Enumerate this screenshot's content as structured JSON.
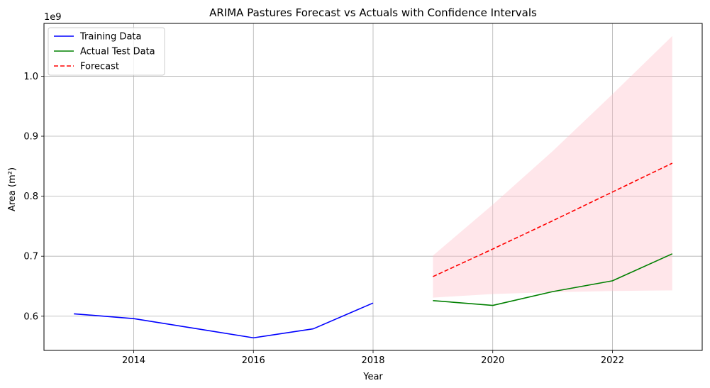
{
  "chart_data": {
    "type": "line",
    "title": "ARIMA Pastures Forecast vs Actuals with Confidence Intervals",
    "xlabel": "Year",
    "ylabel": "Area (m²)",
    "y_offset_label": "1e9",
    "xlim": [
      2012.5,
      2023.5
    ],
    "ylim": [
      0.543,
      1.088
    ],
    "xticks": [
      2014,
      2016,
      2018,
      2020,
      2022
    ],
    "xtick_labels": [
      "2014",
      "2016",
      "2018",
      "2020",
      "2022"
    ],
    "yticks": [
      0.6,
      0.7,
      0.8,
      0.9,
      1.0
    ],
    "ytick_labels": [
      "0.6",
      "0.7",
      "0.8",
      "0.9",
      "1.0"
    ],
    "grid": true,
    "legend_position": "top-left",
    "series": [
      {
        "name": "Training Data",
        "style": "solid",
        "color": "#0000ff",
        "x": [
          2013,
          2014,
          2015,
          2016,
          2017,
          2018
        ],
        "values": [
          0.604,
          0.596,
          0.58,
          0.564,
          0.579,
          0.622
        ]
      },
      {
        "name": "Actual Test Data",
        "style": "solid",
        "color": "#008000",
        "x": [
          2019,
          2020,
          2021,
          2022,
          2023
        ],
        "values": [
          0.626,
          0.618,
          0.641,
          0.659,
          0.704
        ]
      },
      {
        "name": "Forecast",
        "style": "dashed",
        "color": "#ff0000",
        "x": [
          2019,
          2020,
          2021,
          2022,
          2023
        ],
        "values": [
          0.666,
          0.712,
          0.759,
          0.807,
          0.855
        ]
      }
    ],
    "confidence_band": {
      "color": "#ffc0cb",
      "opacity": 0.4,
      "x": [
        2019,
        2020,
        2021,
        2022,
        2023
      ],
      "lower": [
        0.631,
        0.637,
        0.64,
        0.642,
        0.643
      ],
      "upper": [
        0.701,
        0.786,
        0.875,
        0.97,
        1.067
      ]
    }
  }
}
